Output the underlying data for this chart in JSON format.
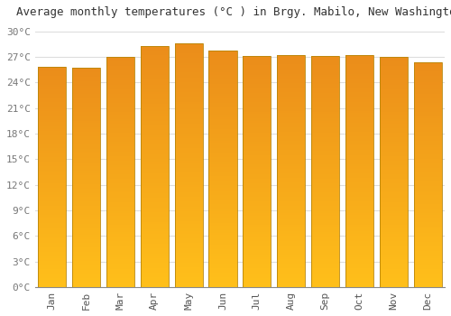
{
  "title": "Average monthly temperatures (°C ) in Brgy. Mabilo, New Washington",
  "months": [
    "Jan",
    "Feb",
    "Mar",
    "Apr",
    "May",
    "Jun",
    "Jul",
    "Aug",
    "Sep",
    "Oct",
    "Nov",
    "Dec"
  ],
  "values": [
    25.8,
    25.7,
    27.0,
    28.3,
    28.6,
    27.7,
    27.1,
    27.2,
    27.1,
    27.2,
    27.0,
    26.4
  ],
  "bar_color_top": "#FFA500",
  "bar_color_bottom": "#FFD040",
  "bar_edge_color": "#CC8800",
  "background_color": "#FFFFFF",
  "grid_color": "#DDDDDD",
  "ylim": [
    0,
    31
  ],
  "yticks": [
    0,
    3,
    6,
    9,
    12,
    15,
    18,
    21,
    24,
    27,
    30
  ],
  "ytick_labels": [
    "0°C",
    "3°C",
    "6°C",
    "9°C",
    "12°C",
    "15°C",
    "18°C",
    "21°C",
    "24°C",
    "27°C",
    "30°C"
  ],
  "title_fontsize": 9,
  "tick_fontsize": 8,
  "font_family": "monospace",
  "bar_width": 0.82
}
